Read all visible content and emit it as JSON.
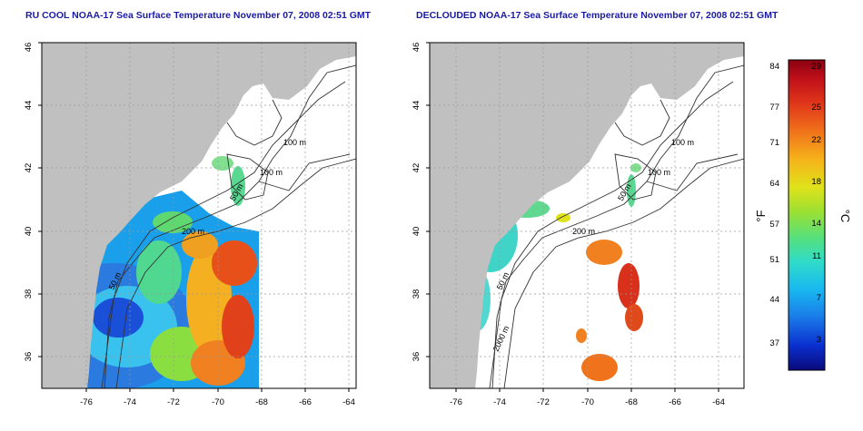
{
  "titles": {
    "left": "RU COOL NOAA-17 Sea Surface Temperature November 07, 2008 02:51 GMT",
    "right": "DECLOUDED NOAA-17 Sea Surface Temperature November 07, 2008 02:51 GMT"
  },
  "map": {
    "lon_range": [
      -77.2,
      -62.8
    ],
    "lat_range": [
      35.0,
      46.0
    ],
    "lon_ticks": [
      "-76",
      "-74",
      "-72",
      "-70",
      "-68",
      "-66",
      "-64"
    ],
    "lat_ticks": [
      "36",
      "38",
      "40",
      "42",
      "44",
      "46"
    ],
    "grid": true,
    "land_color": "#c0c0c0",
    "ocean_color": "#ffffff",
    "contour_color": "#333333",
    "left_contour_labels": [
      "100 m",
      "100 m",
      "50 m",
      "200 m",
      "50 m"
    ],
    "right_contour_labels": [
      "100 m",
      "100 m",
      "50 m",
      "200 m",
      "50 m",
      "2000 m"
    ]
  },
  "colorbar": {
    "f_label": "°F",
    "c_label": "°C",
    "f_ticks": [
      "84",
      "77",
      "71",
      "64",
      "57",
      "51",
      "44",
      "37"
    ],
    "c_ticks": [
      "29",
      "25",
      "22",
      "18",
      "14",
      "11",
      "7",
      "3"
    ],
    "range_c": [
      0,
      30
    ],
    "colors": [
      "#0a0a7a",
      "#0a30d0",
      "#1a7ae8",
      "#18b8f0",
      "#30dcc8",
      "#58e07a",
      "#9be032",
      "#e0e21a",
      "#f6b21a",
      "#f0721a",
      "#e0361a",
      "#c0101a",
      "#8a0010"
    ]
  }
}
